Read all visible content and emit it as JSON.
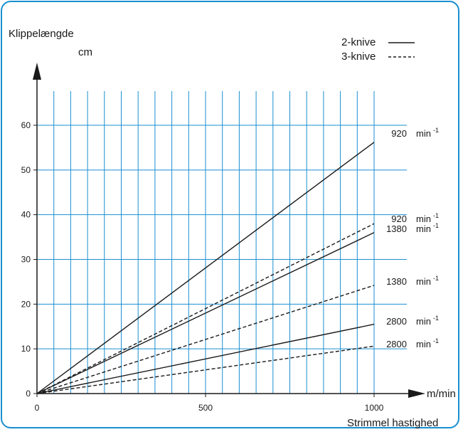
{
  "chart_data": {
    "type": "line",
    "ylabel_line1": "Klippelængde",
    "ylabel_line2": "cm",
    "xlabel_unit": "m/min",
    "xlabel": "Strimmel hastighed",
    "xlim": [
      0,
      1000
    ],
    "ylim": [
      0,
      60
    ],
    "x_ticks": [
      "0",
      "500",
      "1000"
    ],
    "x_tick_values": [
      0,
      500,
      1000
    ],
    "y_ticks": [
      "0",
      "10",
      "20",
      "30",
      "40",
      "50",
      "60"
    ],
    "y_tick_values": [
      0,
      10,
      20,
      30,
      40,
      50,
      60
    ],
    "grid": true,
    "legend_position": "top-right",
    "legend": [
      {
        "label": "2-knive",
        "style": "solid"
      },
      {
        "label": "3-knive",
        "style": "dashed"
      }
    ],
    "unit_label": "min",
    "unit_exponent": "-1",
    "series": [
      {
        "rpm": "920",
        "style": "solid",
        "x": [
          0,
          1000
        ],
        "y": [
          0,
          56.2
        ]
      },
      {
        "rpm": "920",
        "style": "dashed",
        "x": [
          0,
          1000
        ],
        "y": [
          0,
          38.0
        ]
      },
      {
        "rpm": "1380",
        "style": "solid",
        "x": [
          0,
          1000
        ],
        "y": [
          0,
          36.0
        ]
      },
      {
        "rpm": "1380",
        "style": "dashed",
        "x": [
          0,
          1000
        ],
        "y": [
          0,
          24.2
        ]
      },
      {
        "rpm": "2800",
        "style": "solid",
        "x": [
          0,
          1000
        ],
        "y": [
          0,
          15.5
        ]
      },
      {
        "rpm": "2800",
        "style": "dashed",
        "x": [
          0,
          1000
        ],
        "y": [
          0,
          10.6
        ]
      }
    ]
  },
  "colors": {
    "frame": "#1a8fd0",
    "grid": "#1a8fd0",
    "line": "#1a1a1a"
  }
}
